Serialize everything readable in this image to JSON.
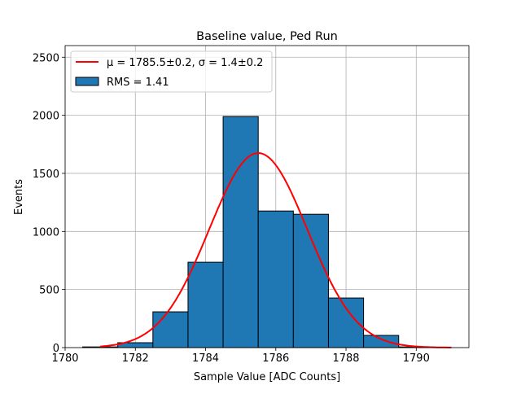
{
  "chart_data": {
    "type": "bar",
    "title": "Baseline value, Ped Run",
    "xlabel": "Sample Value [ADC Counts]",
    "ylabel": "Events",
    "xlim": [
      1780,
      1791.5
    ],
    "ylim": [
      0,
      2600
    ],
    "grid": true,
    "legend_placement": "top-left",
    "xticks": [
      1780,
      1782,
      1784,
      1786,
      1788,
      1790
    ],
    "yticks": [
      0,
      500,
      1000,
      1500,
      2000,
      2500
    ],
    "histogram": {
      "name": "RMS = 1.41",
      "color": "#1f77b4",
      "bin_edges": [
        1780.5,
        1781.5,
        1782.5,
        1783.5,
        1784.5,
        1785.5,
        1786.5,
        1787.5,
        1788.5,
        1789.5,
        1790.5
      ],
      "values": [
        6,
        42,
        308,
        735,
        1989,
        1176,
        1148,
        427,
        105,
        6
      ]
    },
    "fit": {
      "name": "μ = 1785.5±0.2, σ = 1.4±0.2",
      "color": "#ff0000",
      "function": "gaussian",
      "mu": 1785.5,
      "sigma": 1.4,
      "amplitude": 1675,
      "x_range": [
        1781,
        1791
      ]
    }
  }
}
